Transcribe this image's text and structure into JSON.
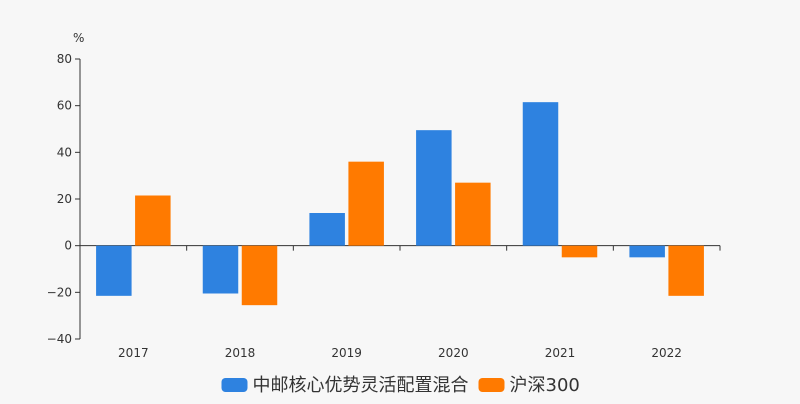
{
  "chart_data": {
    "type": "bar",
    "unit_label": "%",
    "categories": [
      "2017",
      "2018",
      "2019",
      "2020",
      "2021",
      "2022"
    ],
    "series": [
      {
        "name": "中邮核心优势灵活配置混合",
        "color": "#2e82e0",
        "values": [
          -21.5,
          -20.5,
          14.0,
          49.5,
          61.5,
          -5.0
        ]
      },
      {
        "name": "沪深300",
        "color": "#ff7a00",
        "values": [
          21.5,
          -25.5,
          36.0,
          27.0,
          -5.0,
          -21.5
        ]
      }
    ],
    "ylim": [
      -40,
      80
    ],
    "yticks": [
      -40,
      -20,
      0,
      20,
      40,
      60,
      80
    ],
    "legend_position": "bottom-center",
    "grid": false
  }
}
